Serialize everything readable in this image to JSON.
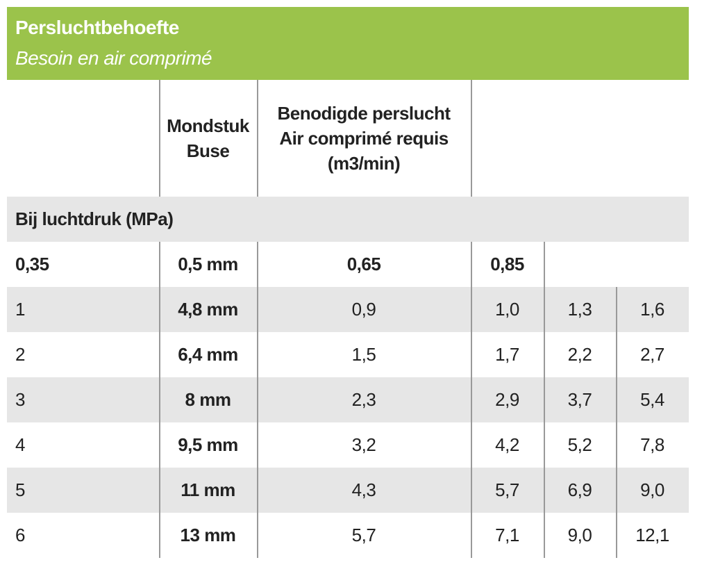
{
  "header": {
    "title": "Persluchtbehoefte",
    "subtitle": "Besoin en air comprimé"
  },
  "table": {
    "columns": [
      [
        "Mondstuk",
        "Buse"
      ],
      [
        "Benodigde perslucht",
        "Air comprimé requis",
        "(m3/min)"
      ]
    ],
    "section": "Bij luchtdruk (MPa)",
    "pressure_row": [
      "0,35",
      "0,5 mm",
      "0,65",
      "0,85"
    ],
    "rows": [
      [
        "1",
        "4,8 mm",
        "0,9",
        "1,0",
        "1,3",
        "1,6"
      ],
      [
        "2",
        "6,4 mm",
        "1,5",
        "1,7",
        "2,2",
        "2,7"
      ],
      [
        "3",
        "8 mm",
        "2,3",
        "2,9",
        "3,7",
        "5,4"
      ],
      [
        "4",
        "9,5 mm",
        "3,2",
        "4,2",
        "5,2",
        "7,8"
      ],
      [
        "5",
        "11 mm",
        "4,3",
        "5,7",
        "6,9",
        "9,0"
      ],
      [
        "6",
        "13 mm",
        "5,7",
        "7,1",
        "9,0",
        "12,1"
      ]
    ]
  }
}
